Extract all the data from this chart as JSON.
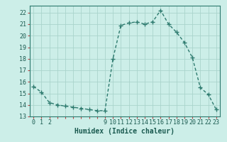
{
  "xlabel": "Humidex (Indice chaleur)",
  "x_values": [
    0,
    1,
    2,
    3,
    4,
    5,
    6,
    7,
    8,
    9,
    10,
    11,
    12,
    13,
    14,
    15,
    16,
    17,
    18,
    19,
    20,
    21,
    22,
    23
  ],
  "y_values": [
    15.6,
    15.1,
    14.2,
    14.0,
    13.9,
    13.8,
    13.7,
    13.6,
    13.5,
    13.5,
    18.0,
    20.9,
    21.1,
    21.2,
    21.0,
    21.2,
    22.2,
    21.0,
    20.3,
    19.4,
    18.1,
    15.5,
    14.9,
    13.6
  ],
  "line_color": "#2d7a6e",
  "marker": "+",
  "marker_size": 4,
  "background_color": "#cceee8",
  "grid_major_color": "#aad4cc",
  "grid_minor_color": "#c0ddd8",
  "tick_color": "#bb4444",
  "ylim": [
    13.0,
    22.6
  ],
  "yticks": [
    13,
    14,
    15,
    16,
    17,
    18,
    19,
    20,
    21,
    22
  ],
  "all_xticks": [
    0,
    1,
    2,
    3,
    4,
    5,
    6,
    7,
    8,
    9,
    10,
    11,
    12,
    13,
    14,
    15,
    16,
    17,
    18,
    19,
    20,
    21,
    22,
    23
  ],
  "labeled_xticks": [
    0,
    1,
    2,
    9,
    10,
    11,
    12,
    13,
    14,
    15,
    16,
    17,
    18,
    19,
    20,
    21,
    22,
    23
  ],
  "font_color": "#1a5a50",
  "font_family": "monospace",
  "font_size": 6.0,
  "xlabel_fontsize": 7.0,
  "linewidth": 1.0
}
